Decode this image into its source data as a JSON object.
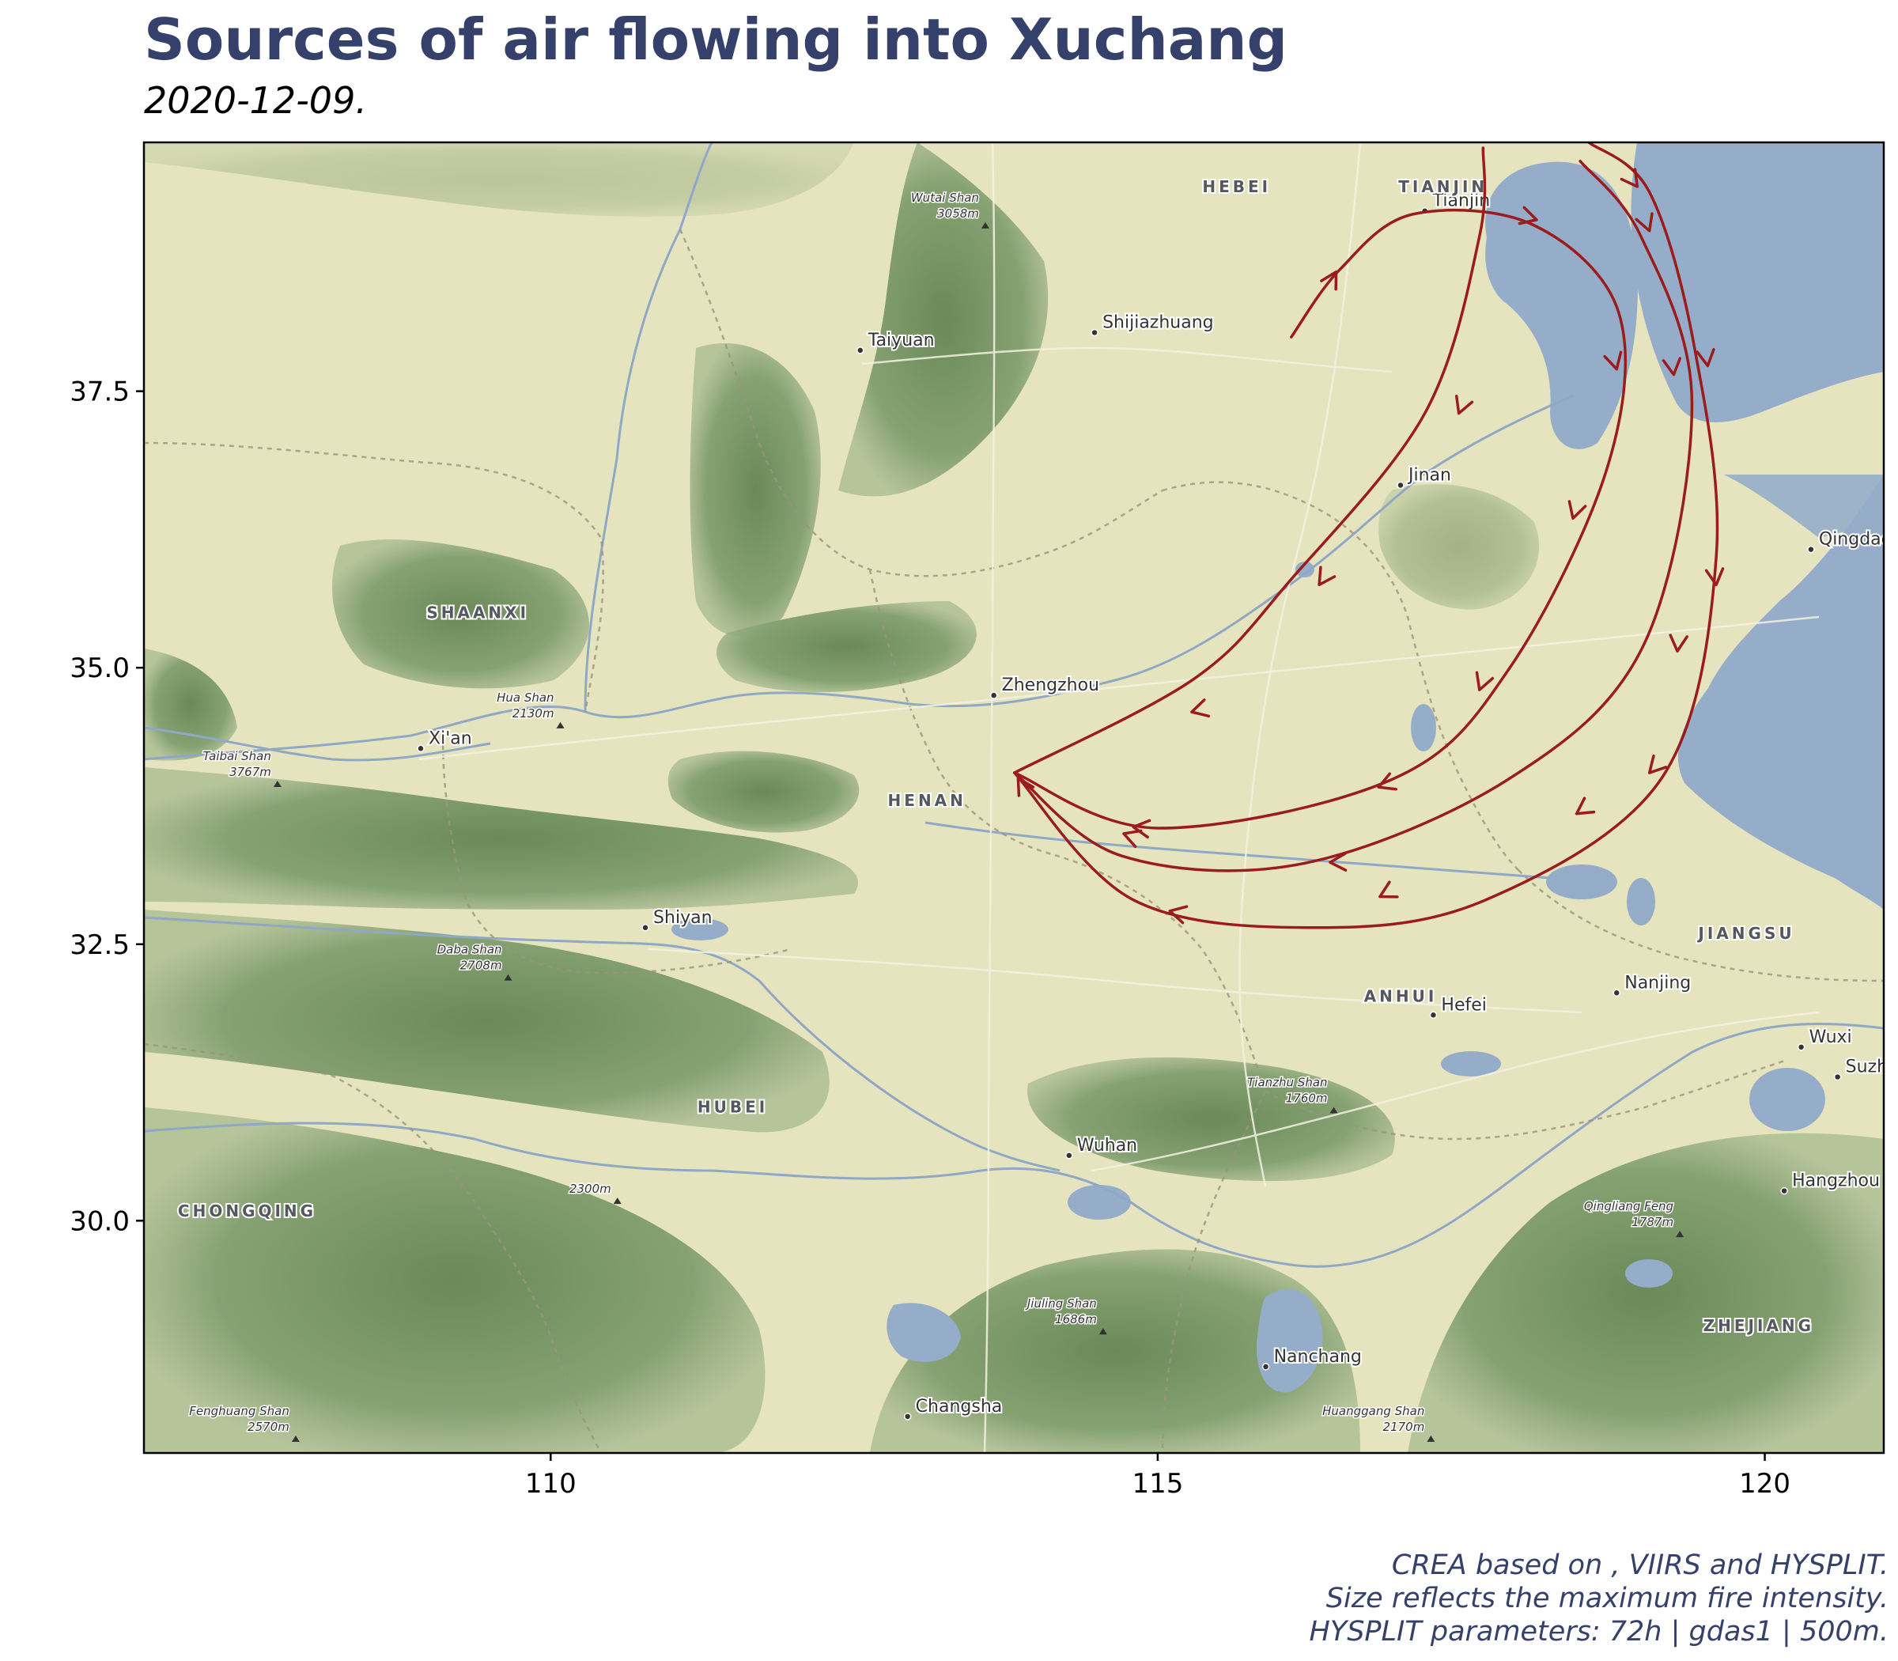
{
  "title": "Sources of air flowing into Xuchang",
  "subtitle": "2020-12-09.",
  "caption": [
    "CREA based on , VIIRS and HYSPLIT.",
    "Size reflects the maximum fire intensity.",
    "HYSPLIT parameters: 72h | gdas1 | 500m."
  ],
  "axes": {
    "x_ticks": [
      {
        "value": 110,
        "label": "110"
      },
      {
        "value": 115,
        "label": "115"
      },
      {
        "value": 120,
        "label": "120"
      }
    ],
    "y_ticks": [
      {
        "value": 37.5,
        "label": "37.5"
      },
      {
        "value": 35.0,
        "label": "35.0"
      },
      {
        "value": 32.5,
        "label": "32.5"
      },
      {
        "value": 30.0,
        "label": "30.0"
      }
    ],
    "xlim": [
      106.65,
      120.98
    ],
    "ylim": [
      27.9,
      39.75
    ]
  },
  "colors": {
    "trajectory": "#9b1c1c",
    "land": "#e6e4be",
    "forest": "#7f9c6a",
    "water": "#95adc9",
    "river": "#8fa8c4"
  },
  "places": {
    "cities": [
      {
        "name": "Tianjin",
        "lon": 117.2,
        "lat": 39.13
      },
      {
        "name": "Taiyuan",
        "lon": 112.55,
        "lat": 37.87
      },
      {
        "name": "Shijiazhuang",
        "lon": 114.48,
        "lat": 38.03
      },
      {
        "name": "Jinan",
        "lon": 117.0,
        "lat": 36.65
      },
      {
        "name": "Qingdao",
        "lon": 120.38,
        "lat": 36.07
      },
      {
        "name": "Zhengzhou",
        "lon": 113.65,
        "lat": 34.75
      },
      {
        "name": "Xi'an",
        "lon": 108.93,
        "lat": 34.27
      },
      {
        "name": "Shiyan",
        "lon": 110.78,
        "lat": 32.65
      },
      {
        "name": "Nanjing",
        "lon": 118.78,
        "lat": 32.06
      },
      {
        "name": "Hefei",
        "lon": 117.27,
        "lat": 31.86
      },
      {
        "name": "Wuxi",
        "lon": 120.3,
        "lat": 31.57
      },
      {
        "name": "Suzh",
        "lon": 120.6,
        "lat": 31.3
      },
      {
        "name": "Wuhan",
        "lon": 114.27,
        "lat": 30.59
      },
      {
        "name": "Hangzhou",
        "lon": 120.16,
        "lat": 30.27
      },
      {
        "name": "Nanchang",
        "lon": 115.89,
        "lat": 28.68
      },
      {
        "name": "Changsha",
        "lon": 112.94,
        "lat": 28.23
      }
    ],
    "provinces": [
      {
        "name": "HEBEI",
        "lon": 115.65,
        "lat": 39.3
      },
      {
        "name": "TIANJIN",
        "lon": 117.35,
        "lat": 39.3
      },
      {
        "name": "SHAANXI",
        "lon": 109.4,
        "lat": 35.45
      },
      {
        "name": "HENAN",
        "lon": 113.1,
        "lat": 33.75
      },
      {
        "name": "JIANGSU",
        "lon": 119.85,
        "lat": 32.55
      },
      {
        "name": "ANHUI",
        "lon": 117.0,
        "lat": 31.98
      },
      {
        "name": "HUBEI",
        "lon": 111.5,
        "lat": 30.98
      },
      {
        "name": "CHONGQING",
        "lon": 107.5,
        "lat": 30.04
      },
      {
        "name": "ZHEJIANG",
        "lon": 119.95,
        "lat": 29.0
      }
    ],
    "peaks": [
      {
        "name": "Wutai Shan",
        "height": "3058m",
        "lon": 113.58,
        "lat": 39.0
      },
      {
        "name": "Hua Shan",
        "height": "2130m",
        "lon": 110.08,
        "lat": 34.48
      },
      {
        "name": "Taibai Shan",
        "height": "3767m",
        "lon": 107.75,
        "lat": 33.95
      },
      {
        "name": "Daba Shan",
        "height": "2708m",
        "lon": 109.65,
        "lat": 32.2
      },
      {
        "name": "Tianzhu Shan",
        "height": "1760m",
        "lon": 116.45,
        "lat": 31.0
      },
      {
        "name": "",
        "height": "2300m",
        "lon": 110.55,
        "lat": 30.18
      },
      {
        "name": "Qingliang Feng",
        "height": "1787m",
        "lon": 119.3,
        "lat": 29.88
      },
      {
        "name": "Jiuling Shan",
        "height": "1686m",
        "lon": 114.55,
        "lat": 29.0
      },
      {
        "name": "Fenghuang Shan",
        "height": "2570m",
        "lon": 107.9,
        "lat": 28.03
      },
      {
        "name": "Huanggang Shan",
        "height": "2170m",
        "lon": 117.25,
        "lat": 28.03
      }
    ]
  },
  "trajectories": [
    {
      "points": [
        [
          117.68,
          39.7
        ],
        [
          117.65,
          38.9
        ],
        [
          117.2,
          37.3
        ],
        [
          116.1,
          35.8
        ],
        [
          115.3,
          34.9
        ],
        [
          113.82,
          34.05
        ]
      ]
    },
    {
      "points": [
        [
          116.1,
          37.99
        ],
        [
          116.5,
          38.6
        ],
        [
          117.1,
          39.1
        ],
        [
          118.1,
          39.0
        ],
        [
          118.8,
          38.2
        ],
        [
          118.7,
          36.8
        ],
        [
          117.9,
          35.0
        ],
        [
          116.95,
          34.0
        ],
        [
          115.0,
          33.55
        ],
        [
          113.82,
          34.05
        ]
      ]
    },
    {
      "points": [
        [
          118.48,
          39.58
        ],
        [
          118.98,
          38.9
        ],
        [
          119.4,
          37.4
        ],
        [
          119.0,
          35.2
        ],
        [
          117.9,
          34.0
        ],
        [
          116.2,
          33.23
        ],
        [
          114.7,
          33.3
        ],
        [
          113.82,
          34.05
        ]
      ]
    },
    {
      "points": [
        [
          118.55,
          39.75
        ],
        [
          119.05,
          39.3
        ],
        [
          119.42,
          37.9
        ],
        [
          119.6,
          36.0
        ],
        [
          119.15,
          34.0
        ],
        [
          117.7,
          32.9
        ],
        [
          116.3,
          32.65
        ],
        [
          114.8,
          32.9
        ],
        [
          113.82,
          34.05
        ]
      ]
    }
  ],
  "arrows": [
    {
      "from": [
        116.35,
        38.35
      ],
      "to": [
        116.47,
        38.58
      ]
    },
    {
      "from": [
        117.9,
        39.12
      ],
      "to": [
        118.12,
        39.05
      ]
    },
    {
      "from": [
        118.72,
        37.95
      ],
      "to": [
        118.78,
        37.7
      ]
    },
    {
      "from": [
        118.48,
        36.57
      ],
      "to": [
        118.42,
        36.35
      ]
    },
    {
      "from": [
        117.7,
        34.95
      ],
      "to": [
        117.65,
        34.8
      ]
    },
    {
      "from": [
        117.0,
        34.0
      ],
      "to": [
        116.82,
        33.92
      ]
    },
    {
      "from": [
        115.1,
        33.52
      ],
      "to": [
        114.8,
        33.56
      ]
    },
    {
      "from": [
        117.55,
        37.5
      ],
      "to": [
        117.48,
        37.3
      ]
    },
    {
      "from": [
        116.45,
        35.95
      ],
      "to": [
        116.33,
        35.75
      ]
    },
    {
      "from": [
        115.55,
        34.68
      ],
      "to": [
        115.28,
        34.6
      ]
    },
    {
      "from": [
        119.0,
        39.1
      ],
      "to": [
        119.05,
        38.95
      ]
    },
    {
      "from": [
        119.22,
        37.9
      ],
      "to": [
        119.25,
        37.65
      ]
    },
    {
      "from": [
        119.3,
        35.4
      ],
      "to": [
        119.28,
        35.15
      ]
    },
    {
      "from": [
        118.65,
        33.83
      ],
      "to": [
        118.45,
        33.68
      ]
    },
    {
      "from": [
        116.7,
        33.25
      ],
      "to": [
        116.42,
        33.24
      ]
    },
    {
      "from": [
        114.9,
        33.43
      ],
      "to": [
        114.72,
        33.5
      ]
    },
    {
      "from": [
        118.85,
        39.5
      ],
      "to": [
        118.95,
        39.35
      ]
    },
    {
      "from": [
        119.5,
        37.95
      ],
      "to": [
        119.53,
        37.73
      ]
    },
    {
      "from": [
        119.58,
        35.95
      ],
      "to": [
        119.6,
        35.75
      ]
    },
    {
      "from": [
        119.2,
        34.23
      ],
      "to": [
        119.05,
        34.05
      ]
    },
    {
      "from": [
        117.0,
        33.03
      ],
      "to": [
        116.83,
        32.93
      ]
    },
    {
      "from": [
        115.4,
        32.72
      ],
      "to": [
        115.1,
        32.8
      ]
    },
    {
      "from": [
        113.95,
        33.82
      ],
      "to": [
        113.85,
        34.0
      ]
    }
  ]
}
